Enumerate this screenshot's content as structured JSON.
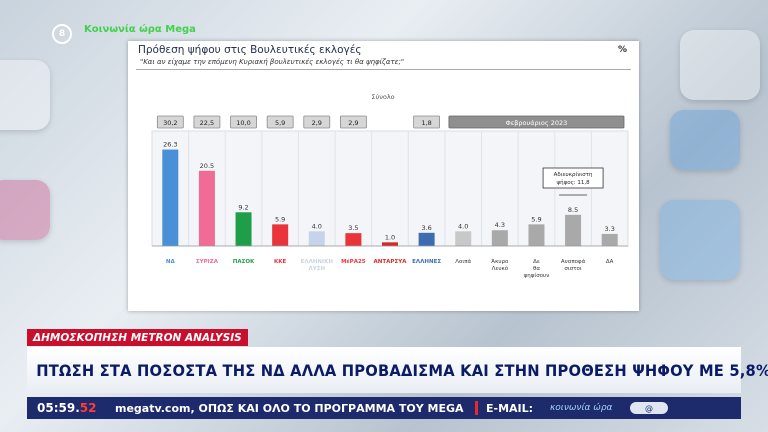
{
  "channel": {
    "logo_text": "Κοινωνία ώρα Mega",
    "badge": "8"
  },
  "slide": {
    "title": "Πρόθεση ψήφου στις Βουλευτικές εκλογές",
    "subtitle": "\"Και αν είχαμε την επόμενη Κυριακή βουλευτικές εκλογές τι θα ψηφίζατε;\"",
    "percent_symbol": "%",
    "total_label": "Σύνολο",
    "reference_label": "Φεβρουάριος 2023",
    "undecided_label": "Αδιευκρίνιστη ψήφος: 11,8"
  },
  "chart_data": {
    "type": "bar",
    "categories": [
      "ΝΔ",
      "ΣΥΡΙΖΑ",
      "ΠΑΣΟΚ",
      "ΚΚΕ",
      "Ελληνική Λύση",
      "ΜέΡΑ25",
      "ΑΝΤΑΡΣΥΑ",
      "Έλληνες",
      "Λοιπά",
      "Άκυρο-Λευκό",
      "Δε θα ψηφίσουν",
      "Αναποφάσιστοι",
      "ΔΑ"
    ],
    "category_labels": [
      "ΝΔ",
      "ΣΥΡΙΖΑ",
      "ΠΑΣΟΚ",
      "ΚΚΕ",
      "ΕΛΛΗΝΙΚΗ ΛΥΣΗ",
      "ΜέΡΑ25",
      "ΑΝΤΑΡΣΥΑ",
      "ΕΛΛΗΝΕΣ",
      "Λοιπά",
      "Άκυρο-Λευκό",
      "Δε θα ψηφίσουν",
      "Αναποφά σιστοι",
      "ΔΑ"
    ],
    "values": [
      26.3,
      20.5,
      9.2,
      5.9,
      4.0,
      3.5,
      1.0,
      3.6,
      4.0,
      4.3,
      5.9,
      8.5,
      3.3
    ],
    "value_labels": [
      "26.3",
      "20.5",
      "9.2",
      "5.9",
      "4.0",
      "3.5",
      "1.0",
      "3.6",
      "4.0",
      "4.3",
      "5.9",
      "8.5",
      "3.3"
    ],
    "colors": [
      "#4a90d9",
      "#f06b95",
      "#1f9e4a",
      "#e8343a",
      "#c7d3e8",
      "#e8343a",
      "#d12a2a",
      "#3d6cb0",
      "#c8c8c8",
      "#a9a9a9",
      "#a9a9a9",
      "#a9a9a9",
      "#a9a9a9"
    ],
    "previous": [
      "30,2",
      "22,5",
      "10,0",
      "5,9",
      "2,9",
      "2,9",
      "",
      "1,8",
      "",
      "",
      "",
      "",
      ""
    ],
    "ylim": [
      0,
      30
    ],
    "grid": false
  },
  "lower_third": {
    "tag": "ΔΗΜΟΣΚΟΠΗΣΗ METRON ANALYSIS",
    "headline": "ΠΤΩΣΗ ΣΤΑ ΠΟΣΟΣΤΑ ΤΗΣ ΝΔ ΑΛΛΑ ΠΡΟΒΑΔΙΣΜΑ ΚΑΙ ΣΤΗΝ ΠΡΟΘΕΣΗ ΨΗΦΟΥ ΜΕ 5,8%"
  },
  "ticker": {
    "time": "05:59",
    "seconds": "52",
    "text": "megatv.com, ΟΠΩΣ ΚΑΙ ΟΛΟ ΤΟ ΠΡΟΓΡΑΜΜΑ ΤΟΥ MEGA",
    "email_label": "E-MAIL:",
    "brand": "κοινωνία ώρα",
    "pill": "@"
  }
}
